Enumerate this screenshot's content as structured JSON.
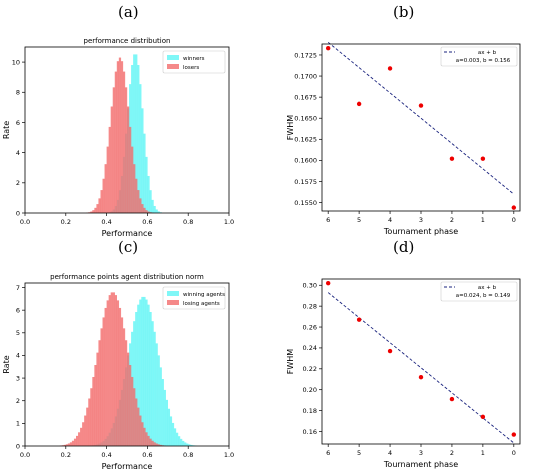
{
  "panels": [
    "(a)",
    "(b)",
    "(c)",
    "(d)"
  ],
  "colors": {
    "winners": "#5ff5f5",
    "losers": "#f36b6b",
    "scatter": "#ee0000",
    "fit": "#1a237e"
  },
  "chart_data": [
    {
      "type": "histogram",
      "panel": "(a)",
      "title": "performance distribution",
      "xlabel": "Performance",
      "ylabel": "Rate",
      "xlim": [
        0.0,
        1.0
      ],
      "ylim": [
        0,
        11
      ],
      "xticks": [
        "0.0",
        "0.2",
        "0.4",
        "0.6",
        "0.8",
        "1.0"
      ],
      "yticks": [
        "0",
        "2",
        "4",
        "6",
        "8",
        "10"
      ],
      "legend": "top-right",
      "series": [
        {
          "name": "winners",
          "color": "#5ff5f5",
          "mean": 0.54,
          "sd": 0.038,
          "peak": 10.6
        },
        {
          "name": "losers",
          "color": "#f36b6b",
          "mean": 0.465,
          "sd": 0.046,
          "peak": 10.3
        }
      ]
    },
    {
      "type": "scatter",
      "panel": "(b)",
      "xlabel": "Tournament phase",
      "ylabel": "FWHM",
      "xlim": [
        6.2,
        -0.2
      ],
      "ylim": [
        0.154,
        0.1738
      ],
      "xticks": [
        "6",
        "5",
        "4",
        "3",
        "2",
        "1",
        "0"
      ],
      "yticks": [
        "0.1550",
        "0.1575",
        "0.1600",
        "0.1625",
        "0.1650",
        "0.1675",
        "0.1700",
        "0.1725"
      ],
      "x": [
        6,
        5,
        4,
        3,
        2,
        1,
        0
      ],
      "y": [
        0.1733,
        0.1667,
        0.1709,
        0.1665,
        0.1602,
        0.1602,
        0.1544
      ],
      "fit": {
        "a": 0.003,
        "b": 0.156
      },
      "legend": {
        "title": "ax + b",
        "label": "a=0.003, b = 0.156",
        "placement": "top-right"
      }
    },
    {
      "type": "histogram",
      "panel": "(c)",
      "title": "performance points agent distribution norm",
      "xlabel": "Performance",
      "ylabel": "Rate",
      "xlim": [
        0.0,
        1.0
      ],
      "ylim": [
        0,
        7.2
      ],
      "xticks": [
        "0.0",
        "0.2",
        "0.4",
        "0.6",
        "0.8",
        "1.0"
      ],
      "yticks": [
        "0",
        "1",
        "2",
        "3",
        "4",
        "5",
        "6",
        "7"
      ],
      "legend": "top-right",
      "series": [
        {
          "name": "winning agents",
          "color": "#5ff5f5",
          "mean": 0.58,
          "sd": 0.075,
          "peak": 6.6
        },
        {
          "name": "losing agents",
          "color": "#f36b6b",
          "mean": 0.43,
          "sd": 0.075,
          "peak": 6.8
        }
      ]
    },
    {
      "type": "scatter",
      "panel": "(d)",
      "xlabel": "Tournament phase",
      "ylabel": "FWHM",
      "xlim": [
        6.2,
        -0.2
      ],
      "ylim": [
        0.148,
        0.306
      ],
      "xticks": [
        "6",
        "5",
        "4",
        "3",
        "2",
        "1",
        "0"
      ],
      "yticks": [
        "0.16",
        "0.18",
        "0.20",
        "0.22",
        "0.24",
        "0.26",
        "0.28",
        "0.30"
      ],
      "x": [
        6,
        5,
        4,
        3,
        2,
        1,
        0
      ],
      "y": [
        0.302,
        0.267,
        0.237,
        0.212,
        0.191,
        0.174,
        0.157
      ],
      "fit": {
        "a": 0.024,
        "b": 0.149
      },
      "legend": {
        "title": "ax + b",
        "label": "a=0.024, b = 0.149",
        "placement": "top-right"
      }
    }
  ]
}
